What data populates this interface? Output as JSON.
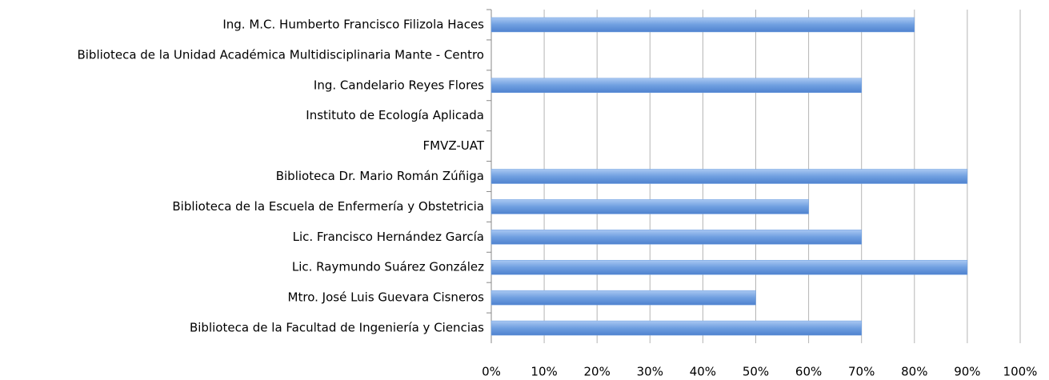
{
  "chart_data": {
    "type": "barh",
    "categories": [
      "Ing. M.C. Humberto Francisco Filizola Haces",
      "Biblioteca de la Unidad Académica Multidisciplinaria Mante - Centro",
      "Ing. Candelario Reyes Flores",
      "Instituto de Ecología Aplicada",
      "FMVZ-UAT",
      "Biblioteca Dr. Mario Román Zúñiga",
      "Biblioteca de la Escuela de Enfermería y Obstetricia",
      "Lic. Francisco Hernández García",
      "Lic. Raymundo Suárez González",
      "Mtro. José Luis Guevara Cisneros",
      "Biblioteca de la Facultad de Ingeniería y Ciencias"
    ],
    "values": [
      80,
      0,
      70,
      0,
      0,
      90,
      60,
      70,
      90,
      50,
      70
    ],
    "color": "#6f9fe0",
    "xlim": [
      0,
      100
    ],
    "xticks": [
      {
        "value": 0,
        "label": "0%"
      },
      {
        "value": 10,
        "label": "10%"
      },
      {
        "value": 20,
        "label": "20%"
      },
      {
        "value": 30,
        "label": "30%"
      },
      {
        "value": 40,
        "label": "40%"
      },
      {
        "value": 50,
        "label": "50%"
      },
      {
        "value": 60,
        "label": "60%"
      },
      {
        "value": 70,
        "label": "70%"
      },
      {
        "value": 80,
        "label": "80%"
      },
      {
        "value": 90,
        "label": "90%"
      },
      {
        "value": 100,
        "label": "100%"
      }
    ],
    "grid": true
  }
}
